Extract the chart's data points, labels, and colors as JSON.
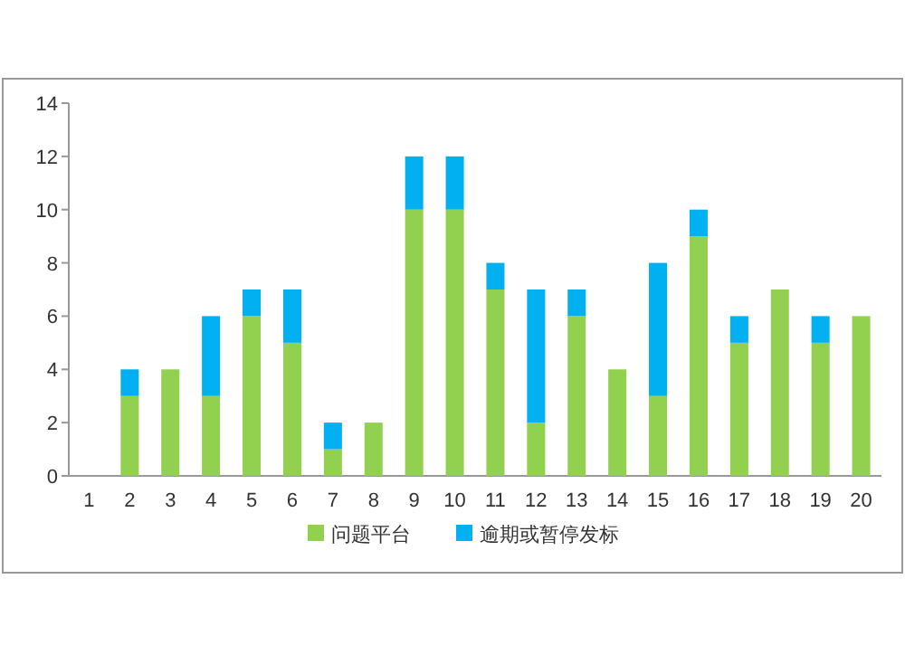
{
  "chart_data": {
    "type": "bar",
    "stacked": true,
    "categories": [
      "1",
      "2",
      "3",
      "4",
      "5",
      "6",
      "7",
      "8",
      "9",
      "10",
      "11",
      "12",
      "13",
      "14",
      "15",
      "16",
      "17",
      "18",
      "19",
      "20"
    ],
    "series": [
      {
        "name": "问题平台",
        "color": "#92d050",
        "values": [
          0,
          3,
          4,
          3,
          6,
          5,
          1,
          2,
          10,
          10,
          7,
          2,
          6,
          4,
          3,
          9,
          5,
          7,
          5,
          6
        ]
      },
      {
        "name": "逾期或暂停发标",
        "color": "#00b0f0",
        "values": [
          0,
          1,
          0,
          3,
          1,
          2,
          1,
          0,
          2,
          2,
          1,
          5,
          1,
          0,
          5,
          1,
          1,
          0,
          1,
          0
        ]
      }
    ],
    "ylim": [
      0,
      14
    ],
    "yticks": [
      0,
      2,
      4,
      6,
      8,
      10,
      12,
      14
    ],
    "grid": false,
    "legend": "bottom"
  }
}
